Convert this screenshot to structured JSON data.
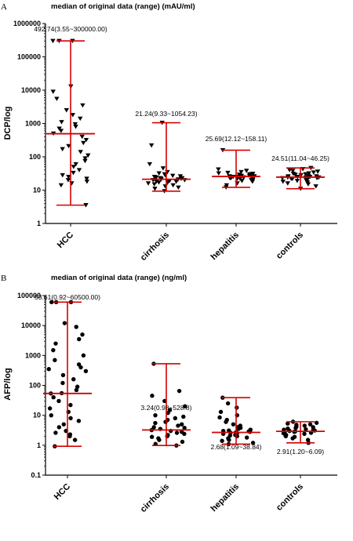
{
  "chart_data": [
    {
      "panel": "A",
      "type": "scatter",
      "subtype": "dot plot with median and range",
      "title": "median of original data (range) (mAU/ml)",
      "ylabel": "DCP/log",
      "xlabel": "",
      "scale": "log",
      "ylim": [
        1,
        1000000
      ],
      "yticks": [
        1,
        10,
        100,
        1000,
        10000,
        100000,
        1000000
      ],
      "ytick_labels": [
        "1",
        "10",
        "100",
        "1000",
        "10000",
        "100000",
        "1000000"
      ],
      "marker": "triangle-down",
      "marker_color": "#000000",
      "line_color": "#d40000",
      "categories": [
        "HCC",
        "cirrhosis",
        "hepatitis",
        "controls"
      ],
      "summary_labels": [
        "492.74(3.55~300000.00)",
        "21.24(9.33~1054.23)",
        "25.69(12.12~158.11)",
        "24.51(11.04~46.25)"
      ],
      "median": [
        492.74,
        21.24,
        25.69,
        24.51
      ],
      "range_min": [
        3.55,
        9.33,
        12.12,
        11.04
      ],
      "range_max": [
        300000.0,
        1054.23,
        158.11,
        46.25
      ],
      "series": [
        {
          "category": "HCC",
          "values": [
            3.55,
            14,
            16,
            18,
            20,
            22,
            25,
            28,
            33,
            40,
            50,
            60,
            75,
            90,
            110,
            140,
            170,
            210,
            260,
            320,
            400,
            500,
            600,
            700,
            800,
            950,
            1100,
            1400,
            1800,
            2500,
            3500,
            5500,
            9000,
            13000,
            300000,
            300000,
            300000
          ]
        },
        {
          "category": "cirrhosis",
          "values": [
            9.33,
            11,
            12,
            13,
            14,
            15,
            16,
            17,
            17,
            18,
            18,
            19,
            19,
            20,
            20,
            21,
            21,
            21,
            22,
            22,
            23,
            23,
            24,
            25,
            26,
            27,
            28,
            30,
            32,
            35,
            45,
            60,
            220,
            1054.23
          ]
        },
        {
          "category": "hepatitis",
          "values": [
            12.12,
            14,
            16,
            18,
            19,
            20,
            20,
            21,
            22,
            22,
            23,
            23,
            24,
            24,
            25,
            25,
            25,
            26,
            26,
            27,
            27,
            28,
            29,
            30,
            31,
            32,
            33,
            35,
            38,
            42,
            158.11
          ]
        },
        {
          "category": "controls",
          "values": [
            11.04,
            13,
            15,
            16,
            17,
            18,
            19,
            20,
            21,
            21,
            22,
            22,
            23,
            23,
            24,
            24,
            24,
            25,
            25,
            26,
            26,
            27,
            28,
            29,
            30,
            31,
            32,
            34,
            36,
            38,
            40,
            43,
            46.25
          ]
        }
      ]
    },
    {
      "panel": "B",
      "type": "scatter",
      "subtype": "dot plot with median and range",
      "title": "median of original data (range) (ng/ml)",
      "ylabel": "AFP/log",
      "xlabel": "",
      "scale": "log",
      "ylim": [
        0.1,
        100000
      ],
      "yticks": [
        0.1,
        1,
        10,
        100,
        1000,
        10000,
        100000
      ],
      "ytick_labels": [
        "0.1",
        "1",
        "10",
        "100",
        "1000",
        "10000",
        "100000"
      ],
      "marker": "circle",
      "marker_color": "#000000",
      "line_color": "#d40000",
      "categories": [
        "HCC",
        "cirrhosis",
        "hepatitis",
        "controls"
      ],
      "summary_labels": [
        "53.61(0.92~60500.00)",
        "3.24(0.98~528.8)",
        "2.68(1.09~38.84)",
        "2.91(1.20~6.09)"
      ],
      "median": [
        53.61,
        3.24,
        2.68,
        2.91
      ],
      "range_min": [
        0.92,
        0.98,
        1.09,
        1.2
      ],
      "range_max": [
        60500.0,
        528.8,
        38.84,
        6.09
      ],
      "series": [
        {
          "category": "HCC",
          "values": [
            0.92,
            1.5,
            2.0,
            2.3,
            2.6,
            3.0,
            4.0,
            5.0,
            6.5,
            8.0,
            10,
            13,
            17,
            22,
            30,
            40,
            53.61,
            55,
            70,
            90,
            120,
            160,
            220,
            300,
            350,
            400,
            500,
            700,
            1000,
            1500,
            2500,
            3500,
            5000,
            9000,
            12000,
            60500,
            60500,
            60500
          ]
        },
        {
          "category": "cirrhosis",
          "values": [
            0.98,
            1.1,
            1.3,
            1.5,
            1.7,
            1.9,
            2.0,
            2.2,
            2.4,
            2.6,
            2.8,
            3.0,
            3.2,
            3.5,
            3.8,
            4.0,
            4.5,
            5.0,
            5.5,
            6.0,
            7.0,
            8.0,
            9.0,
            10,
            12,
            15,
            20,
            30,
            45,
            65,
            528.8
          ]
        },
        {
          "category": "hepatitis",
          "values": [
            1.09,
            1.2,
            1.4,
            1.5,
            1.7,
            1.8,
            2.0,
            2.1,
            2.2,
            2.3,
            2.4,
            2.5,
            2.6,
            2.7,
            2.8,
            2.9,
            3.0,
            3.1,
            3.3,
            3.5,
            3.8,
            4.0,
            4.5,
            5.0,
            6.0,
            7.0,
            8.5,
            10,
            13,
            18,
            25,
            38.84
          ]
        },
        {
          "category": "controls",
          "values": [
            1.2,
            1.5,
            1.7,
            1.9,
            2.0,
            2.2,
            2.3,
            2.4,
            2.5,
            2.6,
            2.7,
            2.8,
            2.9,
            3.0,
            3.1,
            3.2,
            3.3,
            3.4,
            3.6,
            3.8,
            4.0,
            4.2,
            4.5,
            4.8,
            5.0,
            5.3,
            5.6,
            6.09
          ]
        }
      ]
    }
  ]
}
